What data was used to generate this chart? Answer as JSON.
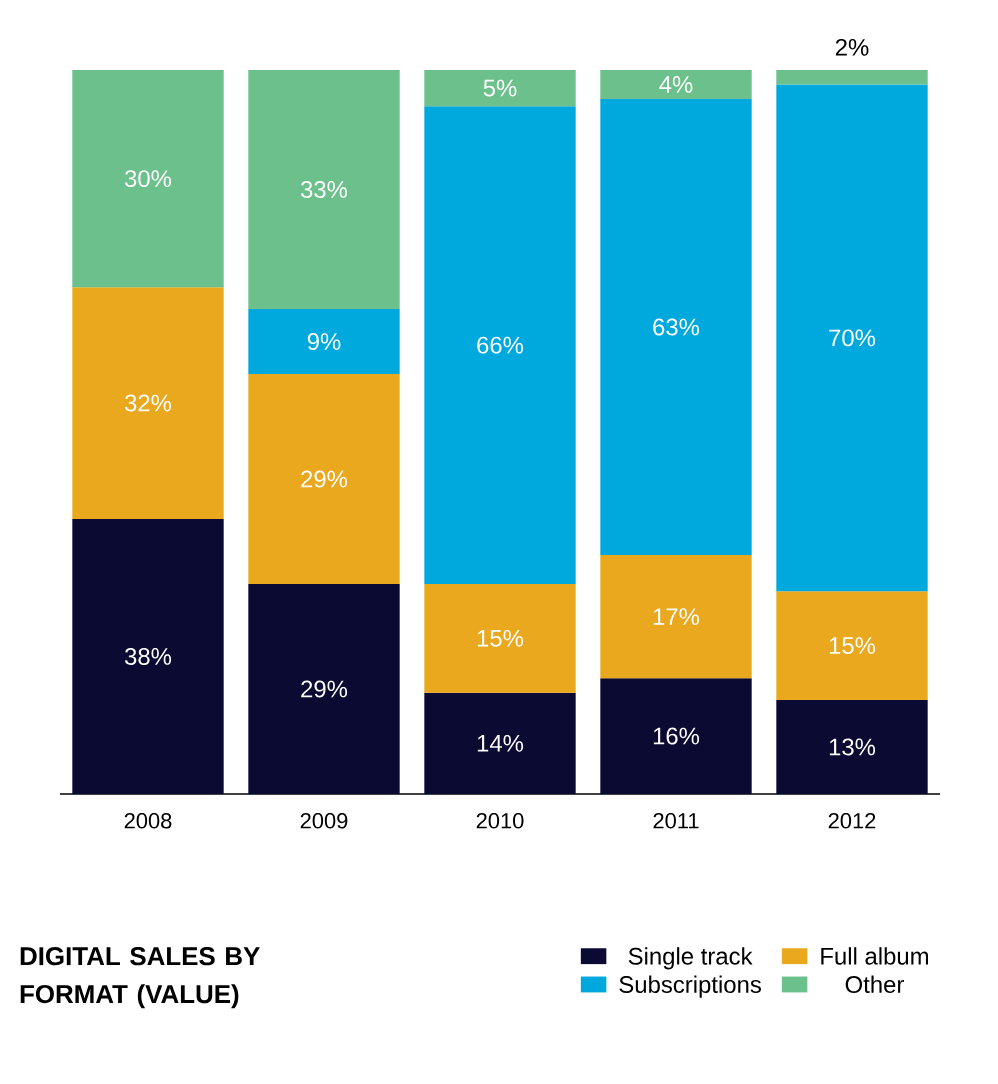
{
  "chart_data": {
    "type": "bar",
    "stacked": true,
    "title": "DIGITAL SALES BY FORMAT (VALUE)",
    "categories": [
      "2008",
      "2009",
      "2010",
      "2011",
      "2012"
    ],
    "legend": "bottom",
    "series": [
      {
        "name": "Single track",
        "color": "#0b0a33",
        "values": [
          38,
          29,
          14,
          16,
          13
        ],
        "value_labels": [
          "38%",
          "29%",
          "14%",
          "16%",
          "13%"
        ]
      },
      {
        "name": "Full album",
        "color": "#eaa81f",
        "values": [
          32,
          29,
          15,
          17,
          15
        ],
        "value_labels": [
          "32%",
          "29%",
          "15%",
          "17%",
          "15%"
        ]
      },
      {
        "name": "Subscriptions",
        "color": "#00a9dd",
        "values": [
          null,
          9,
          66,
          63,
          70
        ],
        "value_labels": [
          null,
          "9%",
          "66%",
          "63%",
          "70%"
        ]
      },
      {
        "name": "Other",
        "color": "#6cc08b",
        "values": [
          30,
          33,
          5,
          4,
          2
        ],
        "value_labels": [
          "30%",
          "33%",
          "5%",
          "4%",
          "2%"
        ]
      }
    ]
  }
}
